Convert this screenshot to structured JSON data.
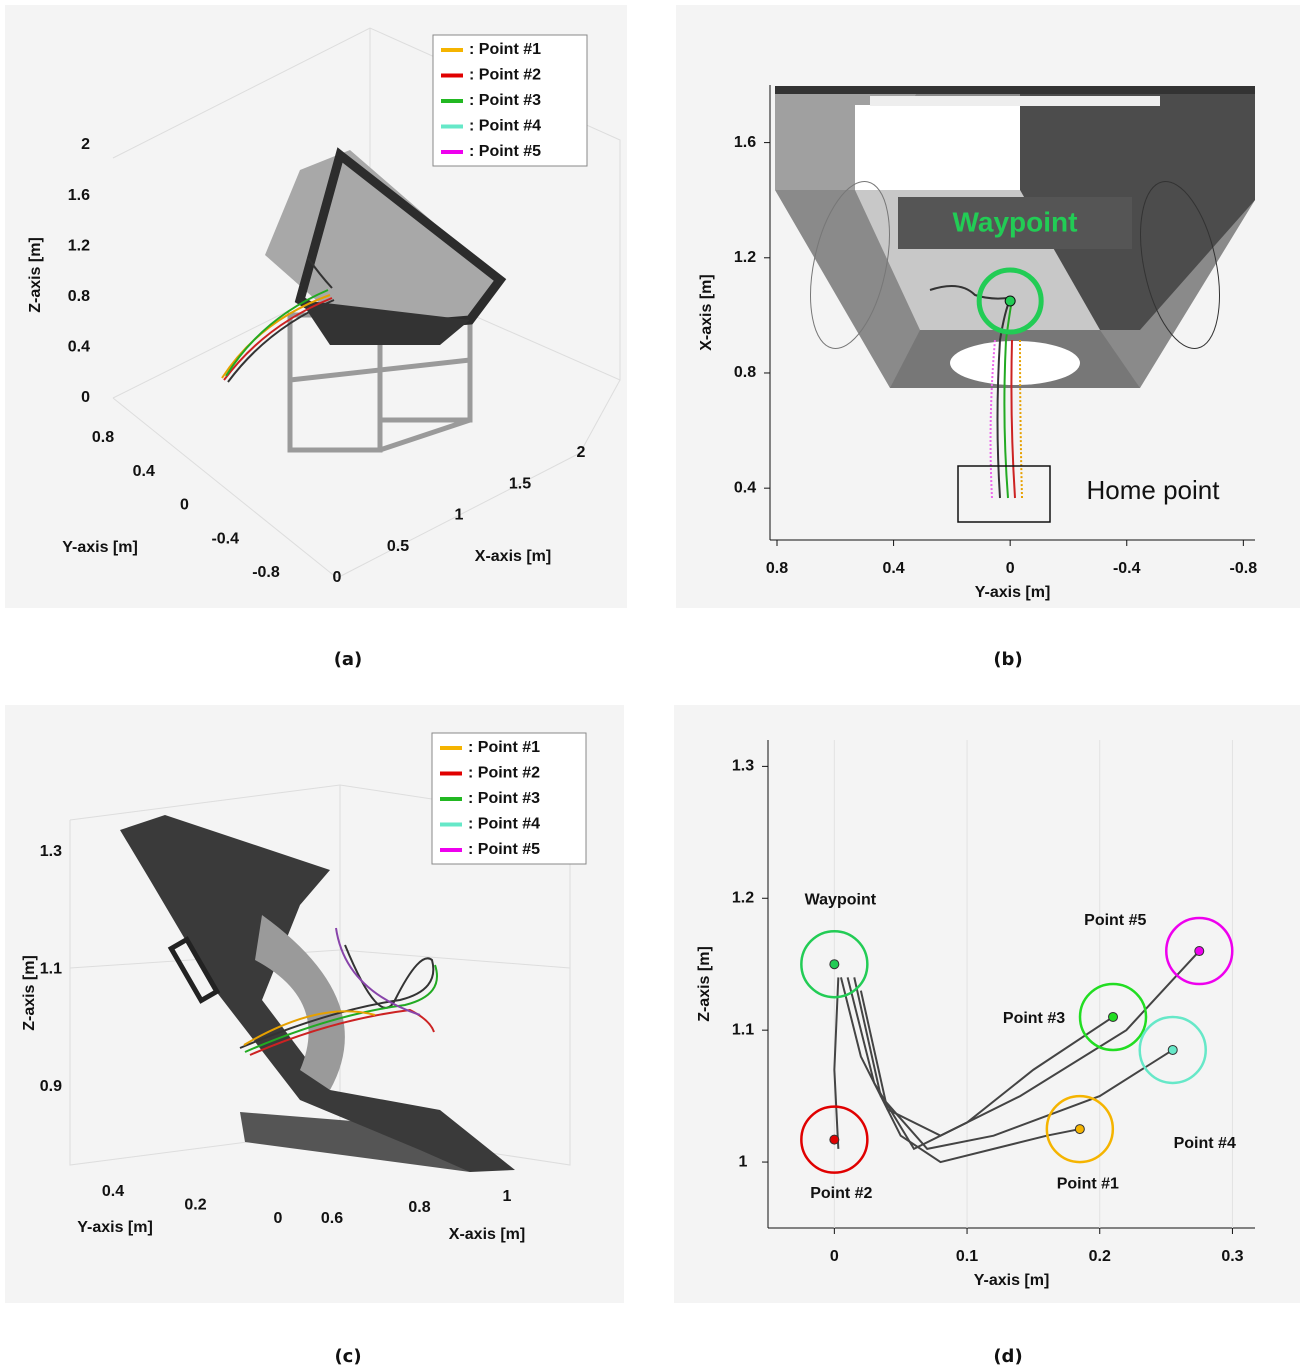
{
  "panels": [
    {
      "caption": "(a)",
      "legend": [
        {
          "name": ": Point #1",
          "color": "#f5b400"
        },
        {
          "name": ": Point #2",
          "color": "#e00000"
        },
        {
          "name": ": Point #3",
          "color": "#22b822"
        },
        {
          "name": ": Point #4",
          "color": "#66e8c8"
        },
        {
          "name": ": Point #5",
          "color": "#ee00ee"
        }
      ],
      "x_axis": {
        "label": "X-axis [m]",
        "ticks": [
          0,
          0.5,
          1,
          1.5,
          2
        ]
      },
      "y_axis": {
        "label": "Y-axis [m]",
        "ticks": [
          0.8,
          0.4,
          0,
          -0.4,
          -0.8
        ]
      },
      "z_axis": {
        "label": "Z-axis [m]",
        "ticks": [
          0,
          0.4,
          0.8,
          1.2,
          1.6,
          2
        ]
      }
    },
    {
      "caption": "(b)",
      "x_axis": {
        "label": "Y-axis [m]",
        "lim": [
          0.824,
          -0.84
        ],
        "ticks": [
          0.8,
          0.4,
          0,
          -0.4,
          -0.8
        ]
      },
      "y_axis": {
        "label": "X-axis [m]",
        "lim": [
          0.22,
          1.8
        ],
        "ticks": [
          0.4,
          0.8,
          1.2,
          1.6
        ]
      },
      "waypoint": {
        "label": "Waypoint",
        "x": 0,
        "y": 1.05,
        "color": "#22cc55"
      },
      "home": {
        "label": "Home point"
      }
    },
    {
      "caption": "(c)",
      "legend": [
        {
          "name": ": Point #1",
          "color": "#f5b400"
        },
        {
          "name": ": Point #2",
          "color": "#e00000"
        },
        {
          "name": ": Point #3",
          "color": "#22b822"
        },
        {
          "name": ": Point #4",
          "color": "#66e8c8"
        },
        {
          "name": ": Point #5",
          "color": "#ee00ee"
        }
      ],
      "x_axis": {
        "label": "X-axis [m]",
        "ticks": [
          0.6,
          0.8,
          1
        ]
      },
      "y_axis": {
        "label": "Y-axis [m]",
        "ticks": [
          0.4,
          0.2,
          0
        ]
      },
      "z_axis": {
        "label": "Z-axis [m]",
        "ticks": [
          0.9,
          1.1,
          1.3
        ]
      }
    },
    {
      "caption": "(d)",
      "x_axis": {
        "label": "Y-axis [m]",
        "lim": [
          -0.05,
          0.317
        ],
        "ticks": [
          0,
          0.1,
          0.2,
          0.3
        ]
      },
      "y_axis": {
        "label": "Z-axis [m]",
        "lim": [
          0.95,
          1.32
        ],
        "ticks": [
          1,
          1.1,
          1.2,
          1.3
        ]
      },
      "points": [
        {
          "label": "Waypoint",
          "x": 0,
          "y": 1.15,
          "color": "#22cc55"
        },
        {
          "label": "Point #1",
          "x": 0.185,
          "y": 1.025,
          "color": "#f5b400"
        },
        {
          "label": "Point #2",
          "x": 0,
          "y": 1.017,
          "color": "#e00000"
        },
        {
          "label": "Point #3",
          "x": 0.21,
          "y": 1.11,
          "color": "#22dd22"
        },
        {
          "label": "Point #4",
          "x": 0.255,
          "y": 1.085,
          "color": "#66e8c8"
        },
        {
          "label": "Point #5",
          "x": 0.275,
          "y": 1.16,
          "color": "#ee00ee"
        }
      ],
      "paths": [
        {
          "x": [
            0.005,
            0.02,
            0.05,
            0.08,
            0.12,
            0.16,
            0.185
          ],
          "y": [
            1.14,
            1.08,
            1.02,
            1.0,
            1.01,
            1.02,
            1.025
          ]
        },
        {
          "x": [
            0.003,
            0.0,
            0.003
          ],
          "y": [
            1.14,
            1.07,
            1.01
          ]
        },
        {
          "x": [
            0.01,
            0.03,
            0.06,
            0.1,
            0.15,
            0.21
          ],
          "y": [
            1.14,
            1.06,
            1.01,
            1.03,
            1.07,
            1.11
          ]
        },
        {
          "x": [
            0.015,
            0.035,
            0.07,
            0.12,
            0.2,
            0.255
          ],
          "y": [
            1.14,
            1.05,
            1.01,
            1.02,
            1.05,
            1.085
          ]
        },
        {
          "x": [
            0.02,
            0.04,
            0.08,
            0.14,
            0.22,
            0.275
          ],
          "y": [
            1.13,
            1.04,
            1.02,
            1.05,
            1.1,
            1.16
          ]
        }
      ]
    }
  ]
}
